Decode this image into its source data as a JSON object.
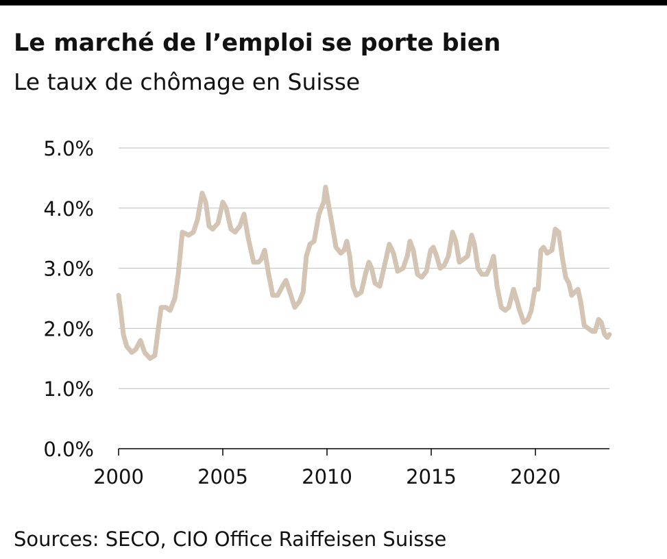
{
  "chart_data": {
    "type": "line",
    "title": "Le marché de l’emploi se porte bien",
    "subtitle": "Le taux de chômage en Suisse",
    "source": "Sources: SECO, CIO Office Raiffeisen Suisse",
    "x": [
      2000.0,
      2000.1,
      2000.23,
      2000.39,
      2000.63,
      2000.82,
      2001.05,
      2001.25,
      2001.51,
      2001.74,
      2002.04,
      2002.27,
      2002.47,
      2002.7,
      2002.86,
      2003.06,
      2003.36,
      2003.59,
      2003.78,
      2004.01,
      2004.18,
      2004.34,
      2004.51,
      2004.77,
      2005.0,
      2005.16,
      2005.39,
      2005.59,
      2005.82,
      2006.02,
      2006.22,
      2006.48,
      2006.71,
      2006.84,
      2007.01,
      2007.2,
      2007.4,
      2007.63,
      2007.86,
      2008.03,
      2008.22,
      2008.45,
      2008.68,
      2008.85,
      2009.01,
      2009.18,
      2009.38,
      2009.61,
      2009.84,
      2009.93,
      2010.1,
      2010.26,
      2010.43,
      2010.66,
      2010.82,
      2010.95,
      2011.09,
      2011.25,
      2011.41,
      2011.64,
      2011.84,
      2012.01,
      2012.14,
      2012.3,
      2012.53,
      2012.73,
      2012.99,
      2013.19,
      2013.39,
      2013.65,
      2013.85,
      2013.98,
      2014.14,
      2014.34,
      2014.54,
      2014.77,
      2014.97,
      2015.1,
      2015.26,
      2015.43,
      2015.63,
      2015.82,
      2016.02,
      2016.18,
      2016.35,
      2016.55,
      2016.74,
      2016.94,
      2017.07,
      2017.24,
      2017.43,
      2017.66,
      2017.86,
      2017.99,
      2018.16,
      2018.36,
      2018.55,
      2018.72,
      2018.95,
      2019.08,
      2019.24,
      2019.44,
      2019.64,
      2019.8,
      2019.97,
      2020.13,
      2020.26,
      2020.39,
      2020.56,
      2020.79,
      2020.95,
      2021.12,
      2021.28,
      2021.45,
      2021.61,
      2021.74,
      2021.88,
      2022.04,
      2022.17,
      2022.34,
      2022.53,
      2022.73,
      2022.86,
      2023.03,
      2023.16,
      2023.32,
      2023.45,
      2023.55
    ],
    "series": [
      {
        "name": "Taux de chômage",
        "color": "#d3c4b4",
        "values": [
          2.55,
          2.3,
          1.9,
          1.7,
          1.6,
          1.65,
          1.8,
          1.6,
          1.5,
          1.55,
          2.35,
          2.35,
          2.3,
          2.5,
          2.9,
          3.6,
          3.55,
          3.6,
          3.8,
          4.25,
          4.1,
          3.7,
          3.65,
          3.75,
          4.1,
          4.0,
          3.65,
          3.6,
          3.7,
          3.9,
          3.5,
          3.1,
          3.1,
          3.15,
          3.3,
          2.9,
          2.55,
          2.55,
          2.7,
          2.8,
          2.6,
          2.35,
          2.45,
          2.6,
          3.2,
          3.4,
          3.45,
          3.9,
          4.1,
          4.35,
          4.0,
          3.7,
          3.35,
          3.25,
          3.3,
          3.45,
          3.2,
          2.7,
          2.55,
          2.6,
          2.9,
          3.1,
          3.0,
          2.75,
          2.7,
          3.0,
          3.4,
          3.25,
          2.95,
          3.0,
          3.2,
          3.45,
          3.3,
          2.9,
          2.85,
          2.95,
          3.3,
          3.35,
          3.2,
          3.0,
          3.05,
          3.2,
          3.6,
          3.45,
          3.1,
          3.15,
          3.2,
          3.55,
          3.4,
          3.0,
          2.9,
          2.9,
          3.05,
          3.2,
          2.7,
          2.35,
          2.3,
          2.35,
          2.65,
          2.5,
          2.3,
          2.1,
          2.15,
          2.3,
          2.65,
          2.65,
          3.3,
          3.35,
          3.25,
          3.3,
          3.65,
          3.6,
          3.2,
          2.85,
          2.75,
          2.55,
          2.6,
          2.65,
          2.45,
          2.05,
          2.0,
          1.95,
          1.95,
          2.15,
          2.1,
          1.9,
          1.85,
          1.9
        ]
      }
    ],
    "xlim": [
      2000,
      2023.55
    ],
    "xticks": [
      2000,
      2005,
      2010,
      2015,
      2020
    ],
    "ylim": [
      0,
      5
    ],
    "yticks": [
      {
        "value": 0,
        "label": "0.0%"
      },
      {
        "value": 1,
        "label": "1.0%"
      },
      {
        "value": 2,
        "label": "2.0%"
      },
      {
        "value": 3,
        "label": "3.0%"
      },
      {
        "value": 4,
        "label": "4.0%"
      },
      {
        "value": 5,
        "label": "5.0%"
      }
    ],
    "grid": true
  }
}
